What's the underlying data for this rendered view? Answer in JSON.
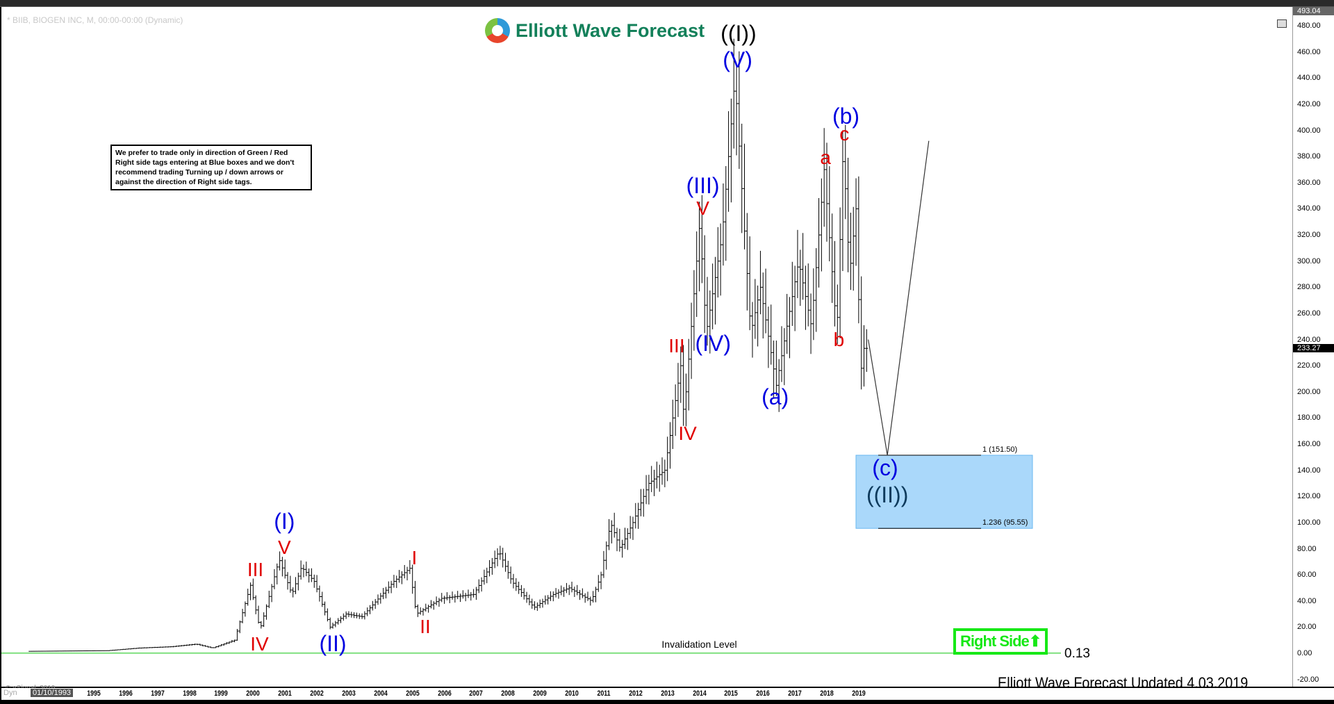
{
  "header": {
    "symbol": "* BIIB, BIOGEN INC, M, 00:00-00:00 (Dynamic)",
    "logo_text": "Elliott Wave Forecast"
  },
  "note": "We prefer to trade only in direction of Green / Red Right side tags entering at Blue boxes and we don't recommend trading Turning up / down arrows or against the direction of Right side tags.",
  "footer": {
    "updated": "Elliott Wave Forecast Updated 4.03.2019",
    "copyright": "© eSignal, 2019",
    "dyn": "Dyn",
    "start_date": "01/10/1993"
  },
  "right_side": {
    "label": "Right Side",
    "icon": "arrow-up-icon",
    "color": "#17e817"
  },
  "invalidation": {
    "label": "Invalidation Level",
    "value": "0.13",
    "price": 0.13,
    "color": "#7ee07e"
  },
  "blue_box": {
    "top_label": "1 (151.50)",
    "bottom_label": "1.236 (95.55)",
    "top": 151.5,
    "bottom": 95.55,
    "color": "#aad8fa"
  },
  "chart_data": {
    "type": "ohlc",
    "title": "",
    "ylim": [
      -20,
      493.04
    ],
    "yticks": [
      "480.00",
      "460.00",
      "440.00",
      "420.00",
      "400.00",
      "380.00",
      "360.00",
      "340.00",
      "320.00",
      "300.00",
      "280.00",
      "260.00",
      "240.00",
      "220.00",
      "200.00",
      "180.00",
      "160.00",
      "140.00",
      "120.00",
      "100.00",
      "80.00",
      "60.00",
      "40.00",
      "20.00",
      "0.00",
      "-20.00"
    ],
    "y_top_label": "493.04",
    "last_price": "233.27",
    "xticks": [
      "1995",
      "1996",
      "1997",
      "1998",
      "1999",
      "2000",
      "2001",
      "2002",
      "2003",
      "2004",
      "2005",
      "2006",
      "2007",
      "2008",
      "2009",
      "2010",
      "2011",
      "2012",
      "2013",
      "2014",
      "2015",
      "2016",
      "2017",
      "2018",
      "2019"
    ],
    "price_path": [
      [
        1993.0,
        1.5
      ],
      [
        1995.5,
        2
      ],
      [
        1996.5,
        4
      ],
      [
        1997.5,
        5
      ],
      [
        1998.3,
        7
      ],
      [
        1998.8,
        4
      ],
      [
        1999.5,
        10
      ],
      [
        2000.0,
        52
      ],
      [
        2000.3,
        18
      ],
      [
        2000.9,
        72
      ],
      [
        2001.3,
        45
      ],
      [
        2001.6,
        66
      ],
      [
        2002.0,
        55
      ],
      [
        2002.5,
        20
      ],
      [
        2003.0,
        30
      ],
      [
        2003.5,
        28
      ],
      [
        2004.5,
        55
      ],
      [
        2005.0,
        65
      ],
      [
        2005.2,
        30
      ],
      [
        2006.0,
        42
      ],
      [
        2007.0,
        45
      ],
      [
        2007.8,
        78
      ],
      [
        2008.2,
        55
      ],
      [
        2008.9,
        35
      ],
      [
        2009.5,
        45
      ],
      [
        2010.0,
        50
      ],
      [
        2010.7,
        40
      ],
      [
        2011.0,
        60
      ],
      [
        2011.3,
        100
      ],
      [
        2011.6,
        80
      ],
      [
        2012.0,
        100
      ],
      [
        2012.5,
        130
      ],
      [
        2013.0,
        140
      ],
      [
        2013.5,
        220
      ],
      [
        2013.6,
        180
      ],
      [
        2014.1,
        330
      ],
      [
        2014.3,
        245
      ],
      [
        2014.8,
        320
      ],
      [
        2015.2,
        440
      ],
      [
        2015.7,
        245
      ],
      [
        2016.0,
        280
      ],
      [
        2016.5,
        205
      ],
      [
        2017.2,
        300
      ],
      [
        2017.6,
        250
      ],
      [
        2018.0,
        370
      ],
      [
        2018.4,
        245
      ],
      [
        2018.6,
        388
      ],
      [
        2018.8,
        290
      ],
      [
        2019.0,
        340
      ],
      [
        2019.15,
        215
      ],
      [
        2019.25,
        233.27
      ]
    ],
    "projection": [
      [
        2019.3,
        240
      ],
      [
        2019.9,
        151.5
      ],
      [
        2021.2,
        392
      ]
    ],
    "annotations": [
      {
        "text": "((I))",
        "color": "#000000",
        "x": 2015.23,
        "y": 474,
        "size": "blue"
      },
      {
        "text": "(V)",
        "color": "#0000e0",
        "x": 2015.2,
        "y": 454,
        "size": "blue"
      },
      {
        "text": "(b)",
        "color": "#0000e0",
        "x": 2018.6,
        "y": 411,
        "size": "blue"
      },
      {
        "text": "c",
        "color": "#e00000",
        "x": 2018.55,
        "y": 397,
        "size": "red"
      },
      {
        "text": "a",
        "color": "#e00000",
        "x": 2017.96,
        "y": 379,
        "size": "red"
      },
      {
        "text": "(III)",
        "color": "#0000e0",
        "x": 2014.11,
        "y": 358,
        "size": "blue"
      },
      {
        "text": "V",
        "color": "#e00000",
        "x": 2014.11,
        "y": 340,
        "size": "red"
      },
      {
        "text": "(IV)",
        "color": "#0000e0",
        "x": 2014.43,
        "y": 237,
        "size": "blue"
      },
      {
        "text": "III",
        "color": "#e00000",
        "x": 2013.29,
        "y": 235,
        "size": "red"
      },
      {
        "text": "IV",
        "color": "#e00000",
        "x": 2013.63,
        "y": 168,
        "size": "red"
      },
      {
        "text": "(a)",
        "color": "#0000e0",
        "x": 2016.38,
        "y": 196,
        "size": "blue"
      },
      {
        "text": "b",
        "color": "#e00000",
        "x": 2018.38,
        "y": 240,
        "size": "red"
      },
      {
        "text": "(c)",
        "color": "#0000e0",
        "x": 2019.83,
        "y": 142,
        "size": "blue"
      },
      {
        "text": "((II))",
        "color": "#0d3a5c",
        "x": 2019.9,
        "y": 121,
        "size": "blue"
      },
      {
        "text": "(I)",
        "color": "#0000e0",
        "x": 2000.98,
        "y": 101,
        "size": "blue"
      },
      {
        "text": "V",
        "color": "#e00000",
        "x": 2000.98,
        "y": 81,
        "size": "red"
      },
      {
        "text": "III",
        "color": "#e00000",
        "x": 2000.07,
        "y": 64,
        "size": "red"
      },
      {
        "text": "IV",
        "color": "#e00000",
        "x": 2000.2,
        "y": 7,
        "size": "red"
      },
      {
        "text": "(II)",
        "color": "#0000e0",
        "x": 2002.5,
        "y": 7.6,
        "size": "blue"
      },
      {
        "text": "I",
        "color": "#e00000",
        "x": 2005.06,
        "y": 73,
        "size": "red"
      },
      {
        "text": "II",
        "color": "#e00000",
        "x": 2005.4,
        "y": 20,
        "size": "red"
      }
    ]
  }
}
